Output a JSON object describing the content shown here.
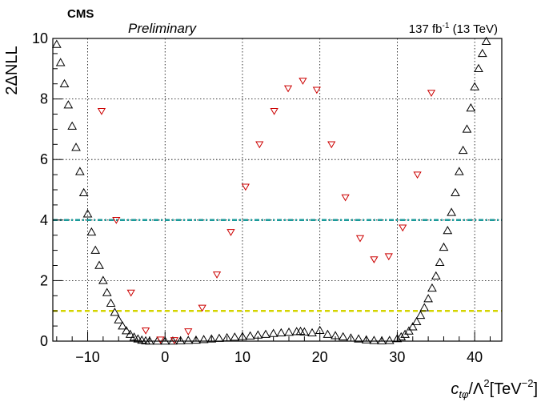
{
  "header": {
    "experiment": "CMS",
    "status": "Preliminary",
    "lumi_value": "137 fb",
    "lumi_exponent": "-1",
    "lumi_energy": " (13 TeV)"
  },
  "axes": {
    "y_label": "2ΔNLL",
    "x_label_main": "c",
    "x_label_sub": "tφ",
    "x_label_mid": "/Λ",
    "x_label_sq": "2",
    "x_label_unit": "[TeV",
    "x_label_unit_exp": "−2",
    "x_label_close": "]"
  },
  "chart_data": {
    "type": "scatter",
    "xlim": [
      -14.5,
      43.5
    ],
    "ylim": [
      0,
      10
    ],
    "x_ticks": [
      -10,
      0,
      10,
      20,
      30,
      40
    ],
    "x_tick_labels": [
      "−10",
      "0",
      "10",
      "20",
      "30",
      "40"
    ],
    "y_ticks": [
      0,
      2,
      4,
      6,
      8,
      10
    ],
    "y_tick_labels": [
      "0",
      "2",
      "4",
      "6",
      "8",
      "10"
    ],
    "grid": true,
    "reference_lines": [
      {
        "y": 4,
        "color": "#1a9a9a",
        "style": "dash-dot"
      },
      {
        "y": 1,
        "color": "#d4d400",
        "style": "dashed"
      }
    ],
    "series": [
      {
        "marker": "open-triangle-up",
        "color": "#000000",
        "points": [
          [
            -14.0,
            9.8
          ],
          [
            -13.5,
            9.2
          ],
          [
            -13.0,
            8.5
          ],
          [
            -12.5,
            7.8
          ],
          [
            -12.0,
            7.1
          ],
          [
            -11.5,
            6.4
          ],
          [
            -11.0,
            5.6
          ],
          [
            -10.5,
            4.9
          ],
          [
            -10.0,
            4.2
          ],
          [
            -9.5,
            3.6
          ],
          [
            -9.0,
            3.0
          ],
          [
            -8.5,
            2.5
          ],
          [
            -8.0,
            2.0
          ],
          [
            -7.5,
            1.6
          ],
          [
            -7.0,
            1.25
          ],
          [
            -6.5,
            0.95
          ],
          [
            -6.0,
            0.7
          ],
          [
            -5.5,
            0.5
          ],
          [
            -5.0,
            0.34
          ],
          [
            -4.5,
            0.22
          ],
          [
            -4.0,
            0.13
          ],
          [
            -3.5,
            0.07
          ],
          [
            -3.0,
            0.03
          ],
          [
            -2.5,
            0.01
          ],
          [
            -2.0,
            0.0
          ],
          [
            -1.0,
            0.0
          ],
          [
            0.0,
            0.0
          ],
          [
            1.0,
            0.0
          ],
          [
            2.0,
            0.01
          ],
          [
            3.0,
            0.02
          ],
          [
            4.0,
            0.03
          ],
          [
            5.0,
            0.05
          ],
          [
            6.0,
            0.07
          ],
          [
            7.0,
            0.09
          ],
          [
            8.0,
            0.11
          ],
          [
            9.0,
            0.13
          ],
          [
            10.0,
            0.15
          ],
          [
            11.0,
            0.17
          ],
          [
            12.0,
            0.2
          ],
          [
            13.0,
            0.22
          ],
          [
            14.0,
            0.25
          ],
          [
            15.0,
            0.27
          ],
          [
            16.0,
            0.29
          ],
          [
            17.0,
            0.31
          ],
          [
            17.5,
            0.32
          ],
          [
            18.0,
            0.3
          ],
          [
            19.0,
            0.27
          ],
          [
            20.0,
            0.35
          ],
          [
            21.0,
            0.22
          ],
          [
            22.0,
            0.18
          ],
          [
            23.0,
            0.14
          ],
          [
            24.0,
            0.1
          ],
          [
            25.0,
            0.07
          ],
          [
            26.0,
            0.04
          ],
          [
            27.0,
            0.02
          ],
          [
            28.0,
            0.01
          ],
          [
            29.0,
            0.02
          ],
          [
            30.0,
            0.08
          ],
          [
            30.5,
            0.14
          ],
          [
            31.0,
            0.22
          ],
          [
            31.5,
            0.33
          ],
          [
            32.0,
            0.47
          ],
          [
            32.5,
            0.64
          ],
          [
            33.0,
            0.85
          ],
          [
            33.5,
            1.1
          ],
          [
            34.0,
            1.4
          ],
          [
            34.5,
            1.75
          ],
          [
            35.0,
            2.15
          ],
          [
            35.5,
            2.6
          ],
          [
            36.0,
            3.1
          ],
          [
            36.5,
            3.65
          ],
          [
            37.0,
            4.25
          ],
          [
            37.5,
            4.9
          ],
          [
            38.0,
            5.6
          ],
          [
            38.5,
            6.3
          ],
          [
            39.0,
            7.0
          ],
          [
            39.5,
            7.7
          ],
          [
            40.0,
            8.4
          ],
          [
            40.5,
            9.0
          ],
          [
            41.0,
            9.5
          ],
          [
            41.5,
            9.9
          ]
        ]
      },
      {
        "marker": "open-triangle-down",
        "color": "#cc0000",
        "points": [
          [
            -8.2,
            7.6
          ],
          [
            -6.3,
            4.0
          ],
          [
            -4.4,
            1.6
          ],
          [
            -2.5,
            0.35
          ],
          [
            -0.6,
            0.05
          ],
          [
            1.2,
            0.03
          ],
          [
            3.0,
            0.32
          ],
          [
            4.8,
            1.1
          ],
          [
            6.7,
            2.2
          ],
          [
            8.5,
            3.6
          ],
          [
            10.4,
            5.1
          ],
          [
            12.2,
            6.5
          ],
          [
            14.1,
            7.6
          ],
          [
            15.9,
            8.35
          ],
          [
            17.8,
            8.6
          ],
          [
            19.6,
            8.3
          ],
          [
            21.5,
            6.5
          ],
          [
            23.3,
            4.75
          ],
          [
            25.2,
            3.4
          ],
          [
            27.0,
            2.7
          ],
          [
            28.9,
            2.8
          ],
          [
            30.7,
            3.75
          ],
          [
            32.6,
            5.5
          ],
          [
            34.4,
            8.2
          ]
        ]
      }
    ]
  }
}
